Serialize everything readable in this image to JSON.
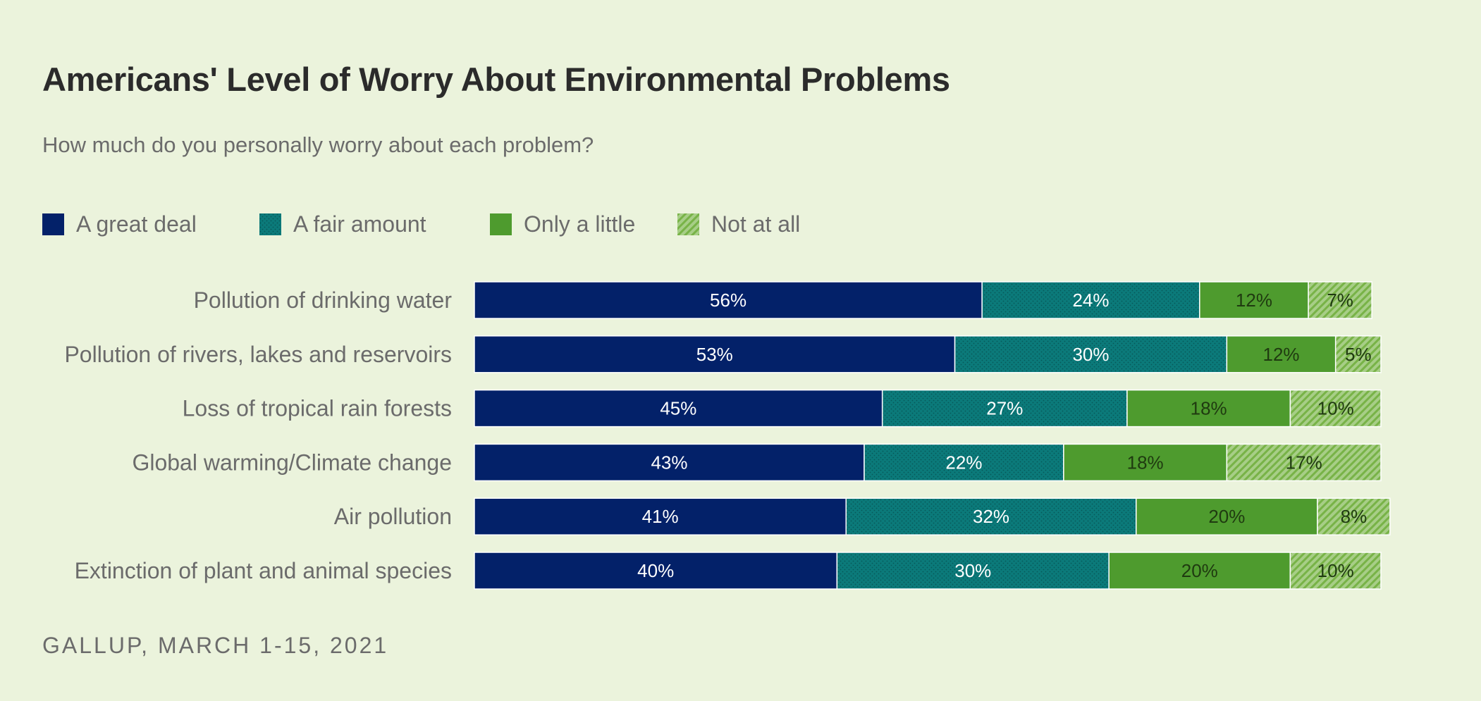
{
  "chart_data": {
    "type": "bar",
    "orientation": "horizontal",
    "stacked": true,
    "title": "Americans' Level of Worry About Environmental Problems",
    "subtitle": "How much do you personally worry about each problem?",
    "categories": [
      "Pollution of drinking water",
      "Pollution of rivers, lakes and reservoirs",
      "Loss of tropical rain forests",
      "Global warming/Climate change",
      "Air pollution",
      "Extinction of plant and animal species"
    ],
    "series": [
      {
        "name": "A great deal",
        "values": [
          56,
          53,
          45,
          43,
          41,
          40
        ],
        "color": "#032169",
        "pattern": "solid",
        "label_color": "#ffffff"
      },
      {
        "name": "A fair amount",
        "values": [
          24,
          30,
          27,
          22,
          32,
          30
        ],
        "color": "#0b7a7a",
        "pattern": "dots",
        "label_color": "#ffffff"
      },
      {
        "name": "Only a little",
        "values": [
          12,
          12,
          18,
          18,
          20,
          20
        ],
        "color": "#4e9b2e",
        "pattern": "solid",
        "label_color": "#1f3a10"
      },
      {
        "name": "Not at all",
        "values": [
          7,
          5,
          10,
          17,
          8,
          10
        ],
        "color": "#78b347",
        "pattern": "hatch",
        "label_color": "#1f3a10"
      }
    ],
    "value_suffix": "%",
    "legend_position": "top",
    "grid": false
  },
  "source": "GALLUP, MARCH 1-15, 2021"
}
